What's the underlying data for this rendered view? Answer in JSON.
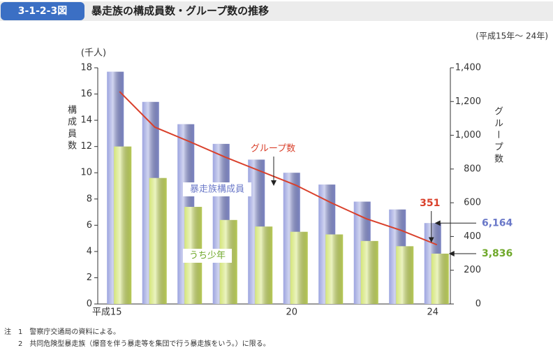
{
  "chart_data": {
    "type": "bar",
    "figure_label": "3-1-2-3図",
    "title": "暴走族の構成員数・グループ数の推移",
    "subtitle": "(平成15年～ 24年)",
    "y_unit": "(千人)",
    "y_label": "構成員数",
    "y2_label": "グループ数",
    "categories": [
      "平成15",
      null,
      null,
      null,
      null,
      "20",
      null,
      null,
      null,
      "24"
    ],
    "ylim": [
      0,
      18
    ],
    "yticks": [
      0,
      2,
      4,
      6,
      8,
      10,
      12,
      14,
      16,
      18
    ],
    "y2lim": [
      0,
      1400
    ],
    "y2ticks": [
      0,
      200,
      400,
      600,
      800,
      {
        "value": 1000,
        "label": "1,000"
      },
      {
        "value": 1200,
        "label": "1,200"
      },
      {
        "value": 1400,
        "label": "1,400"
      }
    ],
    "series": [
      {
        "name": "暴走族構成員",
        "type": "bar",
        "color": "#8c95da",
        "values": [
          17.7,
          15.4,
          13.7,
          12.2,
          11.0,
          10.0,
          9.1,
          7.8,
          7.2,
          6.164
        ],
        "value_labels": [
          null,
          null,
          null,
          null,
          null,
          null,
          null,
          null,
          null,
          "6,164"
        ],
        "label_color": "#6a78c8"
      },
      {
        "name": "うち少年",
        "type": "bar",
        "color": "#cde163",
        "values": [
          12.0,
          9.6,
          7.4,
          6.4,
          5.9,
          5.5,
          5.3,
          4.8,
          4.4,
          3.836
        ],
        "value_labels": [
          null,
          null,
          null,
          null,
          null,
          null,
          null,
          null,
          null,
          "3,836"
        ],
        "label_color": "#6fa82a"
      },
      {
        "name": "グループ数",
        "type": "line",
        "axis": "y2",
        "color": "#d9402b",
        "values": [
          1259,
          1048,
          961,
          870,
          787,
          704,
          600,
          505,
          435,
          351
        ]
      }
    ]
  },
  "notes": [
    "注　1　警察庁交通局の資料による。",
    "　　2　共同危険型暴走族（爆音を伴う暴走等を集団で行う暴走族をいう。）に限る。"
  ]
}
